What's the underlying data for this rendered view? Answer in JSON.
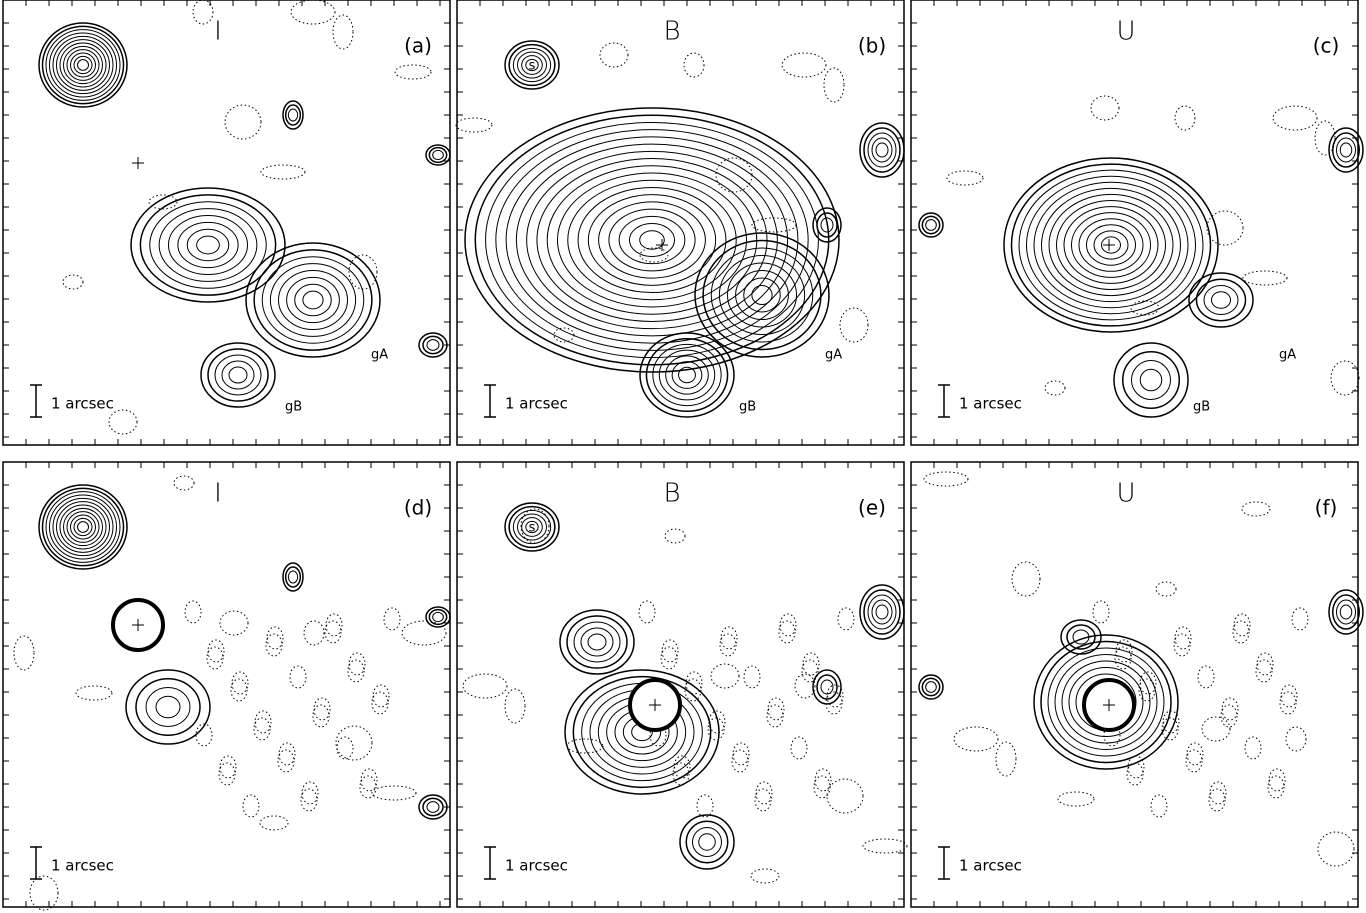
{
  "panels": [
    {
      "band": "I",
      "label": "(a)",
      "scale": "1 arcsec",
      "notes": [
        "gA",
        "gB"
      ]
    },
    {
      "band": "B",
      "label": "(b)",
      "scale": "1 arcsec",
      "notes": [
        "gA",
        "gB"
      ],
      "star": "s"
    },
    {
      "band": "U",
      "label": "(c)",
      "scale": "1 arcsec",
      "notes": [
        "gA",
        "gB"
      ]
    },
    {
      "band": "I",
      "label": "(d)",
      "scale": "1 arcsec"
    },
    {
      "band": "B",
      "label": "(e)",
      "scale": "1 arcsec",
      "star": "s"
    },
    {
      "band": "U",
      "label": "(f)",
      "scale": "1 arcsec"
    }
  ]
}
